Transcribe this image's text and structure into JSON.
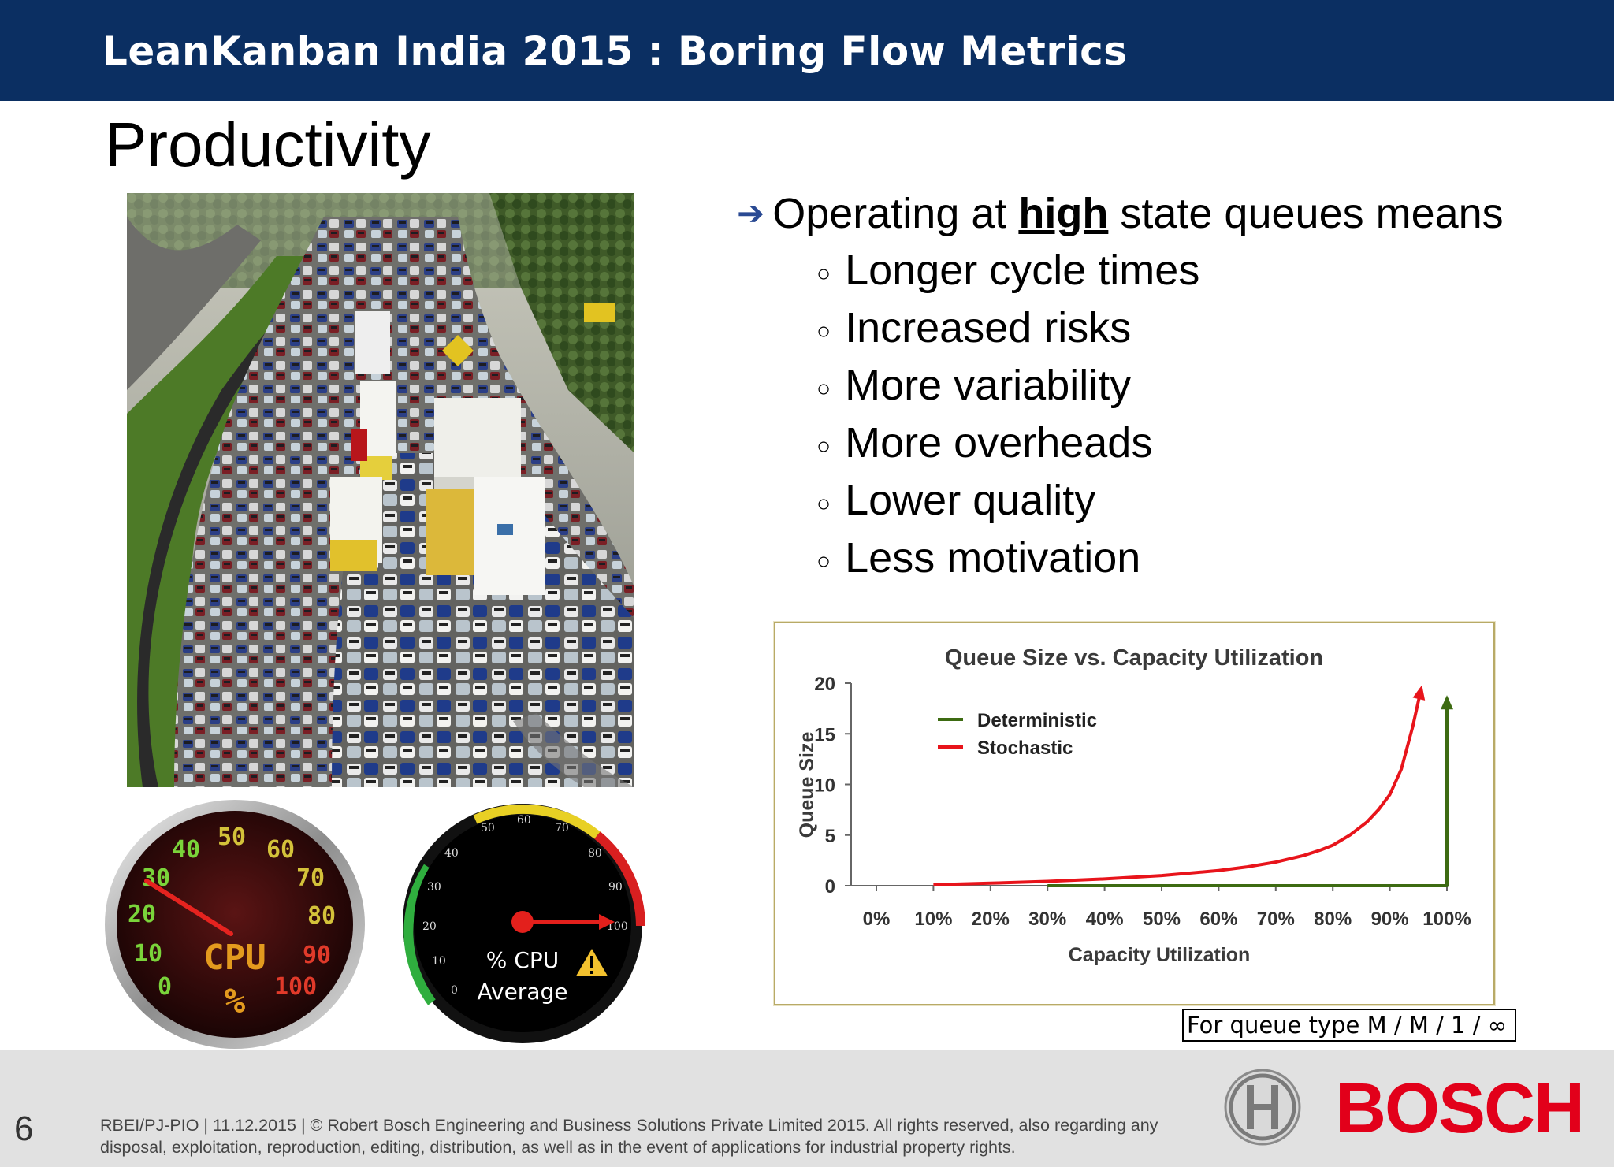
{
  "header": {
    "title": "LeanKanban India 2015 : Boring Flow Metrics"
  },
  "slide": {
    "title": "Productivity"
  },
  "bullets": {
    "main_prefix": "Operating at ",
    "main_emphasis": "high",
    "main_suffix": " state queues means",
    "items": [
      "Longer cycle times",
      "Increased risks",
      "More variability",
      "More overheads",
      "Lower quality",
      "Less motivation"
    ]
  },
  "gauges": {
    "left": {
      "label_top": "CPU",
      "label_bottom": "%",
      "ticks": [
        "0",
        "10",
        "20",
        "30",
        "40",
        "50",
        "60",
        "70",
        "80",
        "90",
        "100"
      ]
    },
    "right": {
      "line1": "% CPU",
      "line2": "Average",
      "ticks": [
        "0",
        "10",
        "20",
        "30",
        "40",
        "50",
        "60",
        "70",
        "80",
        "90",
        "100"
      ]
    }
  },
  "chart_data": {
    "type": "line",
    "title": "Queue Size vs. Capacity Utilization",
    "xlabel": "Capacity Utilization",
    "ylabel": "Queue Size",
    "x_tick_labels": [
      "0%",
      "10%",
      "20%",
      "30%",
      "40%",
      "50%",
      "60%",
      "70%",
      "80%",
      "90%",
      "100%"
    ],
    "y_tick_labels": [
      "0",
      "5",
      "10",
      "15",
      "20"
    ],
    "xlim": [
      0,
      100
    ],
    "ylim": [
      0,
      20
    ],
    "legend_position": "top-left",
    "series": [
      {
        "name": "Deterministic",
        "color": "#3d6b12",
        "x": [
          30,
          100,
          100
        ],
        "y": [
          0,
          0,
          18.5
        ]
      },
      {
        "name": "Stochastic",
        "color": "#e8141b",
        "x": [
          10,
          20,
          30,
          40,
          50,
          60,
          65,
          70,
          75,
          78,
          80,
          83,
          86,
          88,
          90,
          92,
          94,
          95.5
        ],
        "y": [
          0.1,
          0.25,
          0.43,
          0.67,
          1.0,
          1.5,
          1.86,
          2.33,
          3.0,
          3.55,
          4.0,
          5.0,
          6.3,
          7.5,
          9.0,
          11.5,
          15.7,
          19.5
        ]
      }
    ]
  },
  "note": "For queue type  M / M / 1 / ∞",
  "footer": {
    "page_number": "6",
    "legal": "RBEI/PJ-PIO | 11.12.2015 | © Robert Bosch Engineering and Business Solutions Private Limited 2015. All rights reserved, also regarding any disposal, exploitation, reproduction, editing, distribution, as well as in the event of applications for industrial property rights."
  },
  "brand": {
    "name": "BOSCH",
    "color": "#e2001a"
  }
}
